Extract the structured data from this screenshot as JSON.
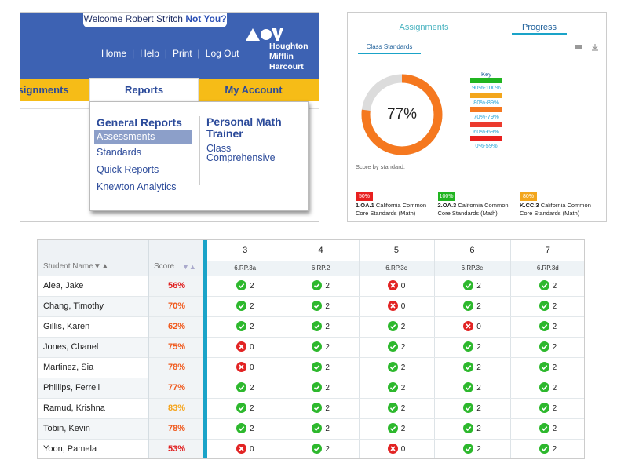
{
  "header": {
    "welcome": "Welcome Robert Stritch",
    "not_you": "Not You?",
    "nav": [
      "Home",
      "Help",
      "Print",
      "Log Out"
    ],
    "logo": [
      "Houghton",
      "Mifflin",
      "Harcourt"
    ]
  },
  "tabs": [
    "Assignments",
    "Reports",
    "My Account"
  ],
  "menu": {
    "general_title": "General Reports",
    "general_items": [
      "Assessments",
      "Standards",
      "Quick Reports",
      "Knewton Analytics"
    ],
    "pmt_title": "Personal Math Trainer",
    "pmt_items": [
      "Class Comprehensive"
    ]
  },
  "progress": {
    "tabs": [
      "Assignments",
      "Progress"
    ],
    "section": "Class Standards",
    "donut": {
      "value": 77,
      "label": "77%",
      "color": "#f5781f"
    },
    "key_title": "Key",
    "key": [
      {
        "label": "90%-100%",
        "color": "#21b521"
      },
      {
        "label": "80%-89%",
        "color": "#f3a61c"
      },
      {
        "label": "70%-79%",
        "color": "#f5781f"
      },
      {
        "label": "60%-69%",
        "color": "#ec3b2e"
      },
      {
        "label": "0%-59%",
        "color": "#e8201f"
      }
    ],
    "score_by": "Score by standard:",
    "standards": [
      {
        "badge": "50%",
        "color": "#e8201f",
        "code": "1.OA.1",
        "text": "California Common Core Standards (Math)"
      },
      {
        "badge": "100%",
        "color": "#21b521",
        "code": "2.OA.3",
        "text": "California Common Core Standards (Math)"
      },
      {
        "badge": "80%",
        "color": "#f3a61c",
        "code": "K.CC.3",
        "text": "California Common Core Standards (Math)"
      }
    ]
  },
  "table": {
    "headers": [
      "Student Name▼▲",
      "Score",
      "▼▲"
    ],
    "columns": [
      {
        "number": 3,
        "code": "6.RP.3a"
      },
      {
        "number": 4,
        "code": "6.RP.2"
      },
      {
        "number": 5,
        "code": "6.RP.3c"
      },
      {
        "number": 6,
        "code": "6.RP.3c"
      },
      {
        "number": 7,
        "code": "6.RP.3d"
      }
    ],
    "rows": [
      {
        "name": "Alea, Jake",
        "score": "56%",
        "cells": [
          2,
          2,
          0,
          2,
          2
        ]
      },
      {
        "name": "Chang, Timothy",
        "score": "70%",
        "cells": [
          2,
          2,
          0,
          2,
          2
        ]
      },
      {
        "name": "Gillis, Karen",
        "score": "62%",
        "cells": [
          2,
          2,
          2,
          0,
          2
        ]
      },
      {
        "name": "Jones, Chanel",
        "score": "75%",
        "cells": [
          0,
          2,
          2,
          2,
          2
        ]
      },
      {
        "name": "Martinez, Sia",
        "score": "78%",
        "cells": [
          0,
          2,
          2,
          2,
          2
        ]
      },
      {
        "name": "Phillips, Ferrell",
        "score": "77%",
        "cells": [
          2,
          2,
          2,
          2,
          2
        ]
      },
      {
        "name": "Ramud, Krishna",
        "score": "83%",
        "cells": [
          2,
          2,
          2,
          2,
          2
        ]
      },
      {
        "name": "Tobin, Kevin",
        "score": "78%",
        "cells": [
          2,
          2,
          2,
          2,
          2
        ]
      },
      {
        "name": "Yoon, Pamela",
        "score": "53%",
        "cells": [
          0,
          2,
          0,
          2,
          2
        ]
      }
    ]
  }
}
